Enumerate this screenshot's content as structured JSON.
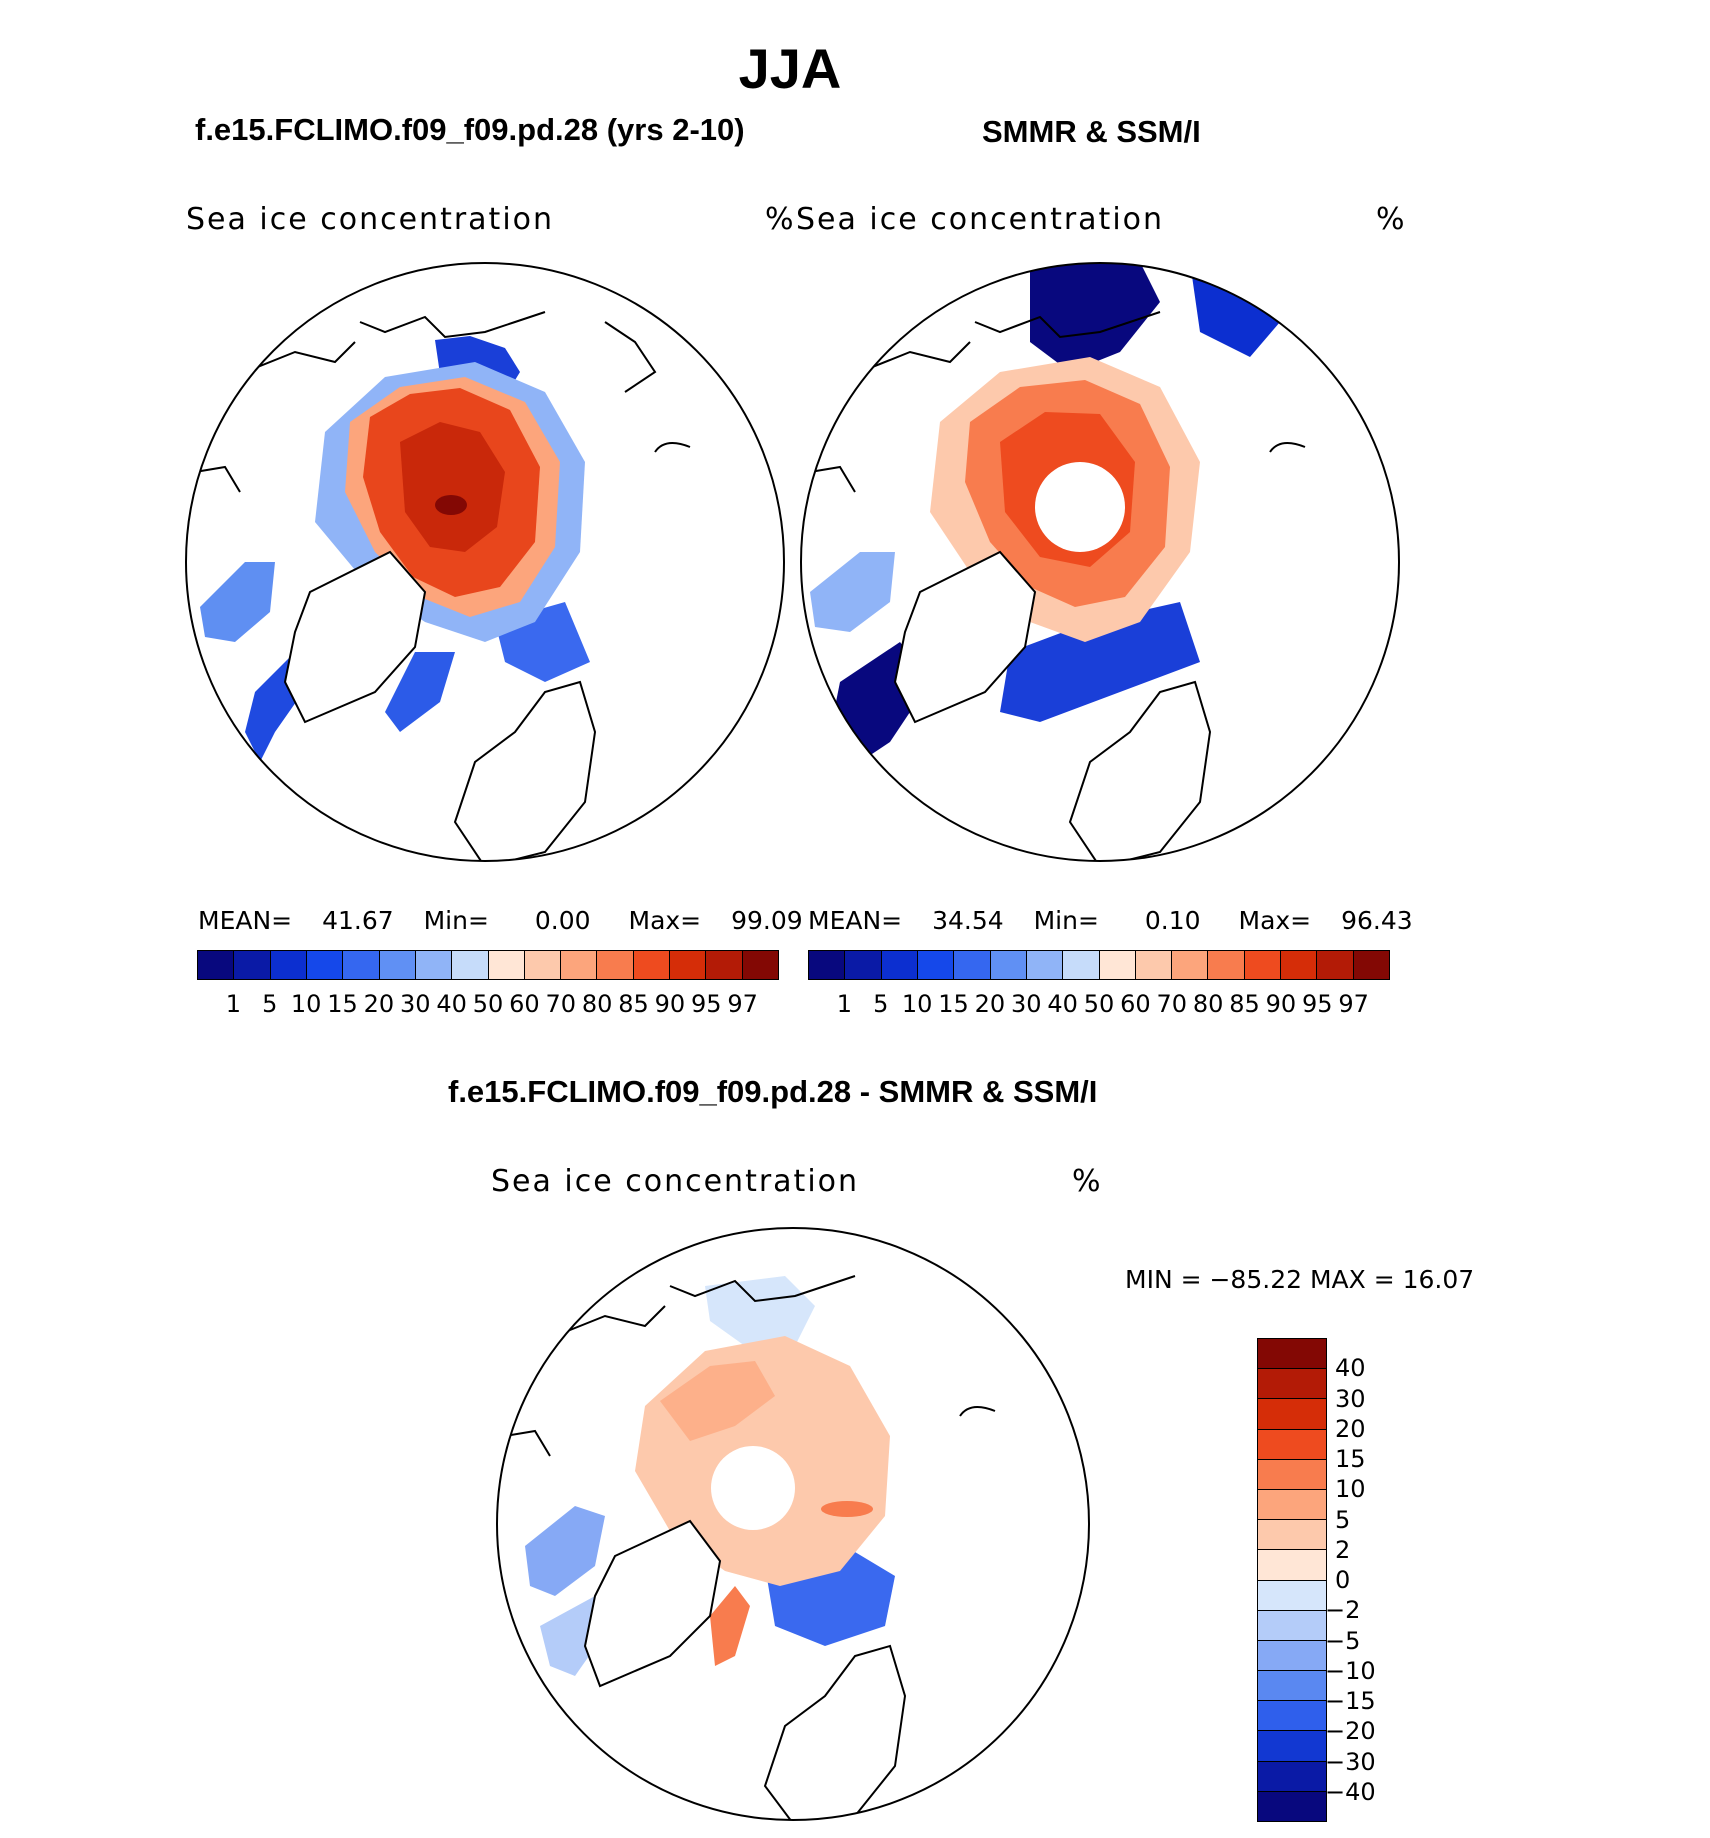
{
  "season": "JJA",
  "panel1": {
    "subtitle": "f.e15.FCLIMO.f09_f09.pd.28 (yrs 2-10)",
    "label": "Sea ice concentration",
    "units": "%",
    "stats": {
      "mean_label": "MEAN=",
      "mean": "41.67",
      "min_label": "Min=",
      "min": "0.00",
      "max_label": "Max=",
      "max": "99.09"
    }
  },
  "panel2": {
    "subtitle": "SMMR & SSM/I",
    "label": "Sea ice concentration",
    "units": "%",
    "stats": {
      "mean_label": "MEAN=",
      "mean": "34.54",
      "min_label": "Min=",
      "min": "0.10",
      "max_label": "Max=",
      "max": "96.43"
    }
  },
  "panel3": {
    "subtitle": "f.e15.FCLIMO.f09_f09.pd.28 - SMMR & SSM/I",
    "label": "Sea ice concentration",
    "units": "%",
    "minmax": "MIN = −85.22  MAX =   16.07"
  },
  "colorbar_concentration": {
    "labels": [
      "1",
      "5",
      "10",
      "15",
      "20",
      "30",
      "40",
      "50",
      "60",
      "70",
      "80",
      "85",
      "90",
      "95",
      "97"
    ],
    "colors": [
      "#08087e",
      "#0a1aa6",
      "#0c2fd0",
      "#1548ea",
      "#3567f0",
      "#6090f4",
      "#90b4f7",
      "#c6dcfa",
      "#ffe6d6",
      "#fdc9ac",
      "#fca57c",
      "#f87c4e",
      "#ee4b1f",
      "#d52d08",
      "#b31b06",
      "#830804"
    ]
  },
  "colorbar_difference": {
    "labels": [
      "40",
      "30",
      "20",
      "15",
      "10",
      "5",
      "2",
      "0",
      "−2",
      "−5",
      "−10",
      "−15",
      "−20",
      "−30",
      "−40"
    ],
    "colors": [
      "#830804",
      "#b31b06",
      "#d52d08",
      "#ee4b1f",
      "#f87c4e",
      "#fca57c",
      "#fdc9ac",
      "#ffe6d6",
      "#d6e6fb",
      "#b4ccf9",
      "#86a9f5",
      "#5a88f1",
      "#2f5fec",
      "#1238d2",
      "#0a1aa6",
      "#08087e"
    ]
  }
}
